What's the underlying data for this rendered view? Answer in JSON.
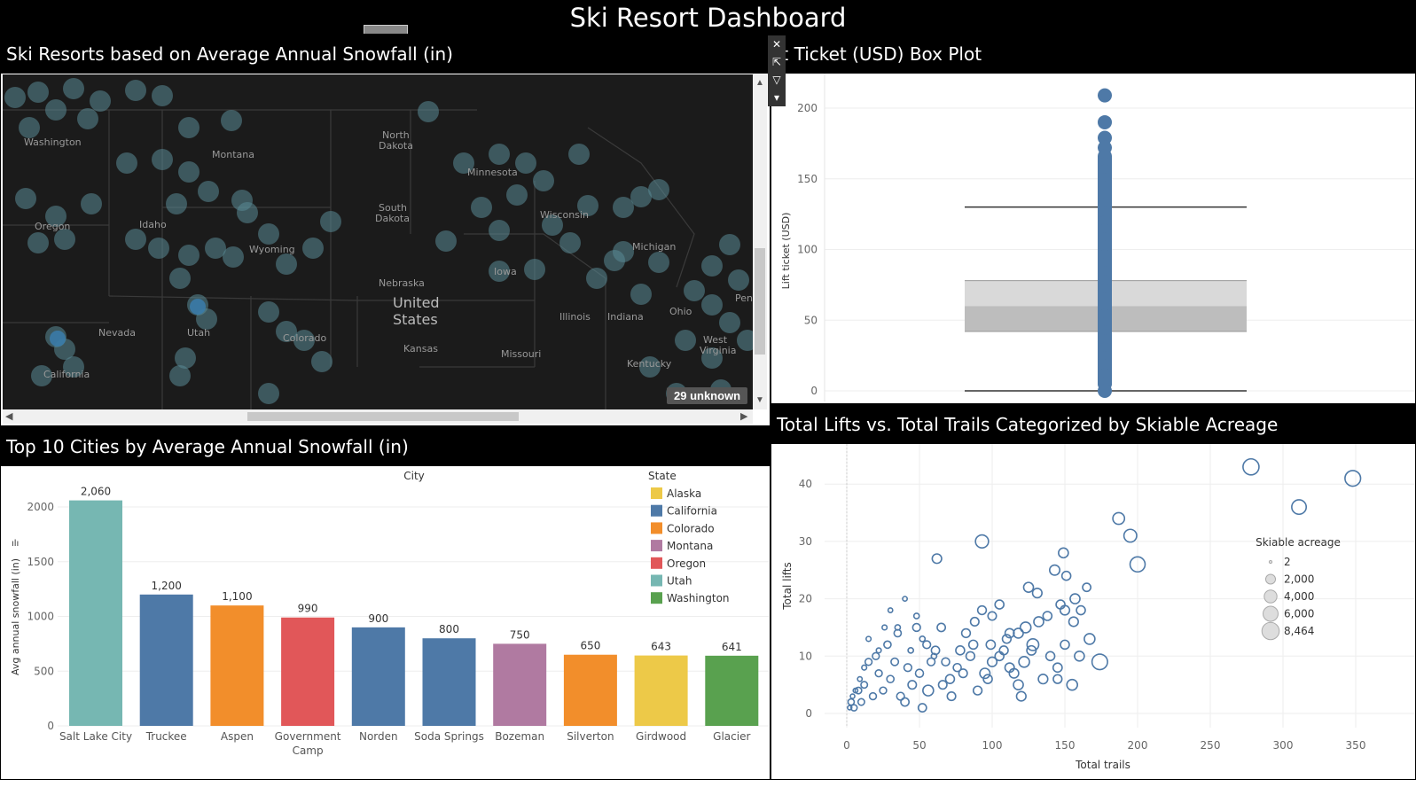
{
  "dashboard": {
    "title": "Ski Resort Dashboard"
  },
  "map": {
    "title": "Ski Resorts based on Average Annual Snowfall (in)",
    "unknown_badge": "29 unknown",
    "labels": [
      "Washington",
      "Montana",
      "North Dakota",
      "Minnesota",
      "Oregon",
      "Idaho",
      "South Dakota",
      "Wisconsin",
      "Wyoming",
      "Michigan",
      "Iowa",
      "Nebraska",
      "United States",
      "Illinois",
      "Indiana",
      "Ohio",
      "Nevada",
      "Utah",
      "Colorado",
      "Kansas",
      "Missouri",
      "Kentucky",
      "West Virginia",
      "California",
      "Penn"
    ]
  },
  "boxplot": {
    "title": "Lift Ticket (USD) Box Plot",
    "ylabel": "Lift ticket (USD)",
    "yticks": [
      "0",
      "50",
      "100",
      "150",
      "200"
    ]
  },
  "bar": {
    "title": "Top 10 Cities by Average Annual Snowfall (in)",
    "xheader": "City",
    "ylabel": "Avg annual snowfall (in)",
    "yticks": [
      "0",
      "500",
      "1000",
      "1500",
      "2000"
    ],
    "legend_title": "State",
    "legend": [
      "Alaska",
      "California",
      "Colorado",
      "Montana",
      "Oregon",
      "Utah",
      "Washington"
    ]
  },
  "scatter": {
    "title": "Total Lifts vs. Total Trails Categorized by Skiable Acreage",
    "xlabel": "Total trails",
    "ylabel": "Total lifts",
    "xticks": [
      "0",
      "50",
      "100",
      "150",
      "200",
      "250",
      "300",
      "350"
    ],
    "yticks": [
      "0",
      "10",
      "20",
      "30",
      "40"
    ],
    "legend_title": "Skiable acreage",
    "legend": [
      "2",
      "2,000",
      "4,000",
      "6,000",
      "8,464"
    ]
  },
  "colors": {
    "Alaska": "#edc948",
    "California": "#4e79a7",
    "Colorado": "#f28e2b",
    "Montana": "#b07aa1",
    "Oregon": "#e15759",
    "Utah": "#76b7b2",
    "Washington": "#59a14f",
    "scatter": "#4e79a7"
  },
  "chart_data": [
    {
      "type": "bar",
      "title": "Top 10 Cities by Average Annual Snowfall (in)",
      "xlabel": "City",
      "ylabel": "Avg annual snowfall (in)",
      "ylim": [
        0,
        2200
      ],
      "categories": [
        "Salt Lake City",
        "Truckee",
        "Aspen",
        "Government Camp",
        "Norden",
        "Soda Springs",
        "Bozeman",
        "Silverton",
        "Girdwood",
        "Glacier"
      ],
      "values": [
        2060,
        1200,
        1100,
        990,
        900,
        800,
        750,
        650,
        643,
        641
      ],
      "value_labels": [
        "2,060",
        "1,200",
        "1,100",
        "990",
        "900",
        "800",
        "750",
        "650",
        "643",
        "641"
      ],
      "states": [
        "Utah",
        "California",
        "Colorado",
        "Oregon",
        "California",
        "California",
        "Montana",
        "Colorado",
        "Alaska",
        "Washington"
      ],
      "legend": "right"
    },
    {
      "type": "box",
      "title": "Lift Ticket (USD) Box Plot",
      "ylabel": "Lift ticket (USD)",
      "ylim": [
        -2,
        215
      ],
      "whisker_low": 0,
      "q1": 42,
      "median": 60,
      "q3": 78,
      "whisker_high": 130,
      "points": [
        209,
        190,
        179,
        172,
        166,
        160,
        155,
        149,
        143,
        137,
        131,
        125,
        119,
        113,
        107,
        101,
        95,
        89,
        83,
        77,
        71,
        65,
        59,
        53,
        47,
        41,
        35,
        29,
        23,
        17,
        11,
        5,
        0
      ]
    },
    {
      "type": "scatter",
      "title": "Total Lifts vs. Total Trails Categorized by Skiable Acreage",
      "xlabel": "Total trails",
      "ylabel": "Total lifts",
      "xlim": [
        -15,
        365
      ],
      "ylim": [
        -3,
        45
      ],
      "size_legend": [
        2,
        2000,
        4000,
        6000,
        8464
      ],
      "points": [
        [
          278,
          43,
          7000
        ],
        [
          348,
          41,
          6600
        ],
        [
          311,
          36,
          5500
        ],
        [
          93,
          30,
          4200
        ],
        [
          187,
          34,
          3200
        ],
        [
          195,
          31,
          4000
        ],
        [
          200,
          26,
          6000
        ],
        [
          62,
          27,
          1800
        ],
        [
          149,
          28,
          2000
        ],
        [
          143,
          25,
          2200
        ],
        [
          151,
          24,
          1500
        ],
        [
          125,
          22,
          2000
        ],
        [
          131,
          21,
          1800
        ],
        [
          157,
          20,
          2000
        ],
        [
          147,
          19,
          1500
        ],
        [
          138,
          17,
          1500
        ],
        [
          165,
          22,
          1200
        ],
        [
          167,
          13,
          2500
        ],
        [
          174,
          9,
          6500
        ],
        [
          132,
          16,
          2000
        ],
        [
          123,
          15,
          2500
        ],
        [
          128,
          12,
          3200
        ],
        [
          118,
          14,
          2000
        ],
        [
          112,
          14,
          1600
        ],
        [
          110,
          13,
          1400
        ],
        [
          108,
          11,
          1400
        ],
        [
          105,
          10,
          1500
        ],
        [
          100,
          9,
          1800
        ],
        [
          95,
          7,
          2200
        ],
        [
          105,
          19,
          1500
        ],
        [
          93,
          18,
          1400
        ],
        [
          88,
          16,
          1300
        ],
        [
          87,
          12,
          1500
        ],
        [
          78,
          11,
          1500
        ],
        [
          76,
          8,
          1100
        ],
        [
          71,
          6,
          1500
        ],
        [
          66,
          5,
          1300
        ],
        [
          56,
          4,
          2500
        ],
        [
          52,
          1,
          1200
        ],
        [
          40,
          2,
          1200
        ],
        [
          100,
          17,
          1300
        ],
        [
          118,
          5,
          2000
        ],
        [
          122,
          9,
          2500
        ],
        [
          127,
          11,
          1700
        ],
        [
          140,
          10,
          1500
        ],
        [
          145,
          8,
          1600
        ],
        [
          150,
          12,
          1500
        ],
        [
          155,
          5,
          2500
        ],
        [
          120,
          3,
          1800
        ],
        [
          156,
          16,
          1800
        ],
        [
          161,
          18,
          1500
        ],
        [
          115,
          7,
          1800
        ],
        [
          99,
          12,
          1600
        ],
        [
          85,
          10,
          1400
        ],
        [
          82,
          14,
          1400
        ],
        [
          68,
          9,
          1100
        ],
        [
          61,
          11,
          1200
        ],
        [
          58,
          9,
          1000
        ],
        [
          55,
          12,
          1000
        ],
        [
          50,
          7,
          1100
        ],
        [
          45,
          5,
          1300
        ],
        [
          42,
          8,
          1000
        ],
        [
          37,
          3,
          1000
        ],
        [
          33,
          9,
          900
        ],
        [
          30,
          6,
          800
        ],
        [
          28,
          12,
          800
        ],
        [
          25,
          4,
          700
        ],
        [
          22,
          7,
          700
        ],
        [
          18,
          3,
          700
        ],
        [
          15,
          9,
          700
        ],
        [
          12,
          5,
          600
        ],
        [
          10,
          2,
          600
        ],
        [
          8,
          4,
          600
        ],
        [
          5,
          1,
          500
        ],
        [
          3,
          2,
          500
        ],
        [
          20,
          10,
          700
        ],
        [
          35,
          14,
          800
        ],
        [
          48,
          15,
          1000
        ],
        [
          65,
          15,
          1200
        ],
        [
          72,
          3,
          1300
        ],
        [
          80,
          7,
          1300
        ],
        [
          90,
          4,
          1400
        ],
        [
          97,
          6,
          1500
        ],
        [
          112,
          8,
          1700
        ],
        [
          135,
          6,
          1800
        ],
        [
          145,
          6,
          1400
        ],
        [
          150,
          18,
          1800
        ],
        [
          160,
          10,
          2000
        ],
        [
          40,
          20,
          150
        ],
        [
          48,
          17,
          300
        ],
        [
          30,
          18,
          150
        ],
        [
          35,
          15,
          300
        ],
        [
          44,
          11,
          300
        ],
        [
          52,
          13,
          300
        ],
        [
          60,
          10,
          300
        ],
        [
          26,
          15,
          200
        ],
        [
          15,
          13,
          200
        ],
        [
          22,
          11,
          200
        ],
        [
          12,
          8,
          200
        ],
        [
          9,
          6,
          150
        ],
        [
          6,
          4,
          150
        ],
        [
          4,
          3,
          120
        ],
        [
          2,
          1,
          100
        ]
      ]
    }
  ]
}
